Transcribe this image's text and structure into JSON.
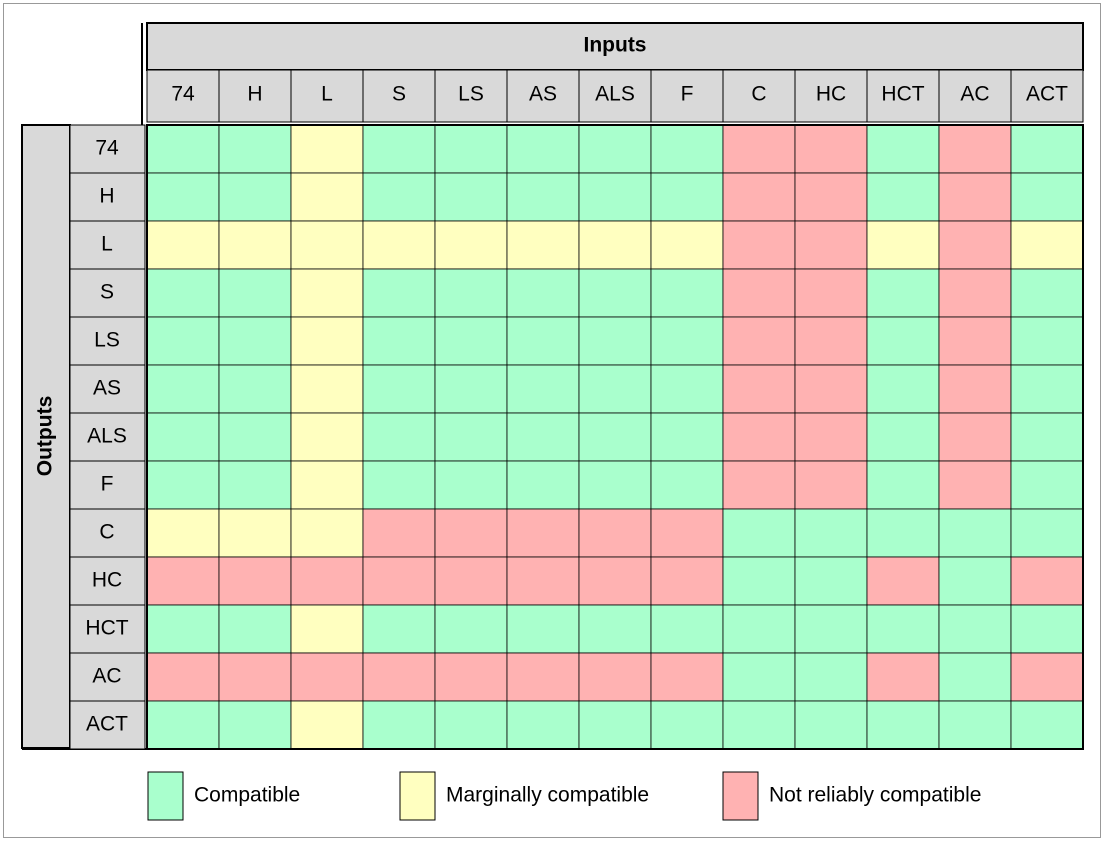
{
  "header": {
    "title": "Inputs",
    "columns": [
      "74",
      "H",
      "L",
      "S",
      "LS",
      "AS",
      "ALS",
      "F",
      "C",
      "HC",
      "HCT",
      "AC",
      "ACT"
    ]
  },
  "side": {
    "title": "Outputs",
    "rows": [
      "74",
      "H",
      "L",
      "S",
      "LS",
      "AS",
      "ALS",
      "F",
      "C",
      "HC",
      "HCT",
      "AC",
      "ACT"
    ]
  },
  "legend": {
    "items": [
      {
        "label": "Compatible",
        "color": "#a9ffcd"
      },
      {
        "label": "Marginally compatible",
        "color": "#ffffc0"
      },
      {
        "label": "Not reliably compatible",
        "color": "#ffb2b2"
      }
    ]
  },
  "matrix": [
    [
      0,
      0,
      1,
      0,
      0,
      0,
      0,
      0,
      2,
      2,
      0,
      2,
      0
    ],
    [
      0,
      0,
      1,
      0,
      0,
      0,
      0,
      0,
      2,
      2,
      0,
      2,
      0
    ],
    [
      1,
      1,
      1,
      1,
      1,
      1,
      1,
      1,
      2,
      2,
      1,
      2,
      1
    ],
    [
      0,
      0,
      1,
      0,
      0,
      0,
      0,
      0,
      2,
      2,
      0,
      2,
      0
    ],
    [
      0,
      0,
      1,
      0,
      0,
      0,
      0,
      0,
      2,
      2,
      0,
      2,
      0
    ],
    [
      0,
      0,
      1,
      0,
      0,
      0,
      0,
      0,
      2,
      2,
      0,
      2,
      0
    ],
    [
      0,
      0,
      1,
      0,
      0,
      0,
      0,
      0,
      2,
      2,
      0,
      2,
      0
    ],
    [
      0,
      0,
      1,
      0,
      0,
      0,
      0,
      0,
      2,
      2,
      0,
      2,
      0
    ],
    [
      1,
      1,
      1,
      2,
      2,
      2,
      2,
      2,
      0,
      0,
      0,
      0,
      0
    ],
    [
      2,
      2,
      2,
      2,
      2,
      2,
      2,
      2,
      0,
      0,
      2,
      0,
      2
    ],
    [
      0,
      0,
      1,
      0,
      0,
      0,
      0,
      0,
      0,
      0,
      0,
      0,
      0
    ],
    [
      2,
      2,
      2,
      2,
      2,
      2,
      2,
      2,
      0,
      0,
      2,
      0,
      2
    ],
    [
      0,
      0,
      1,
      0,
      0,
      0,
      0,
      0,
      0,
      0,
      0,
      0,
      0
    ]
  ]
}
